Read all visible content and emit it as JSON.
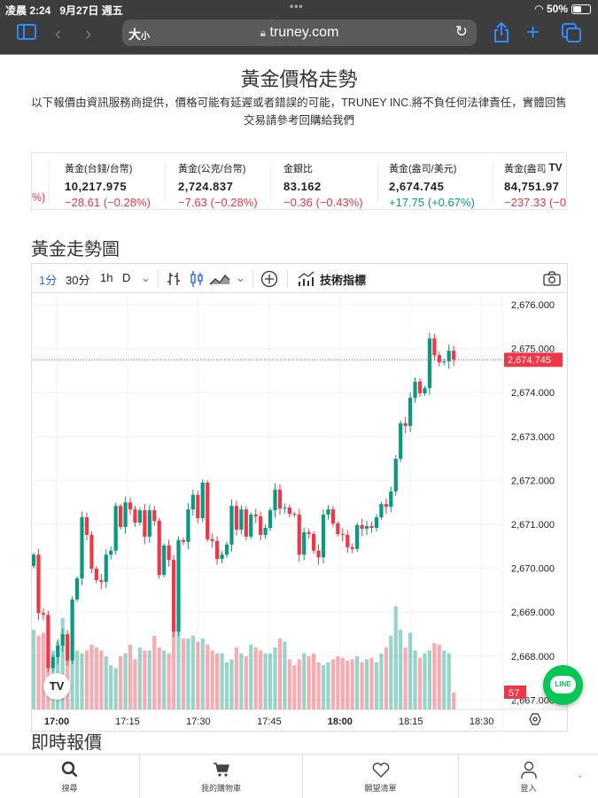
{
  "status": {
    "time": "凌晨 2:24",
    "date": "9月27日 週五",
    "battery": "50%",
    "battery_level": 0.5
  },
  "browser": {
    "text_size": "大",
    "text_size_small": "小",
    "url": "truney.com"
  },
  "page": {
    "title": "黃金價格走勢",
    "disclaimer": "以下報價由資訊服務商提供，價格可能有延遲或者錯誤的可能，TRUNEY INC.將不負任何法律責任，實體回售交易請參考回購給我們",
    "section_title": "黃金走勢圖",
    "live_title": "即時報價"
  },
  "ticker": {
    "partial_prev_change": "%)",
    "items": [
      {
        "name": "黃金(台錢/台幣)",
        "value": "10,217.975",
        "change": "−28.61 (−0.28%)",
        "dir": "down"
      },
      {
        "name": "黃金(公克/台幣)",
        "value": "2,724.837",
        "change": "−7.63 (−0.28%)",
        "dir": "down"
      },
      {
        "name": "金銀比",
        "value": "83.162",
        "change": "−0.36 (−0.43%)",
        "dir": "down"
      },
      {
        "name": "黃金(盎司/美元)",
        "value": "2,674.745",
        "change": "+17.75 (+0.67%)",
        "dir": "up"
      },
      {
        "name": "黃金(盎司",
        "value": "84,751.97",
        "change": "−237.33 (−0",
        "dir": "down"
      }
    ],
    "logo": "TV"
  },
  "toolbar": {
    "intervals": [
      "1分",
      "30分",
      "1h",
      "D"
    ],
    "selected_interval": "1分",
    "indicators": "技術指標"
  },
  "chart_data": {
    "type": "candlestick",
    "interval": "1 minute",
    "first_open": 2670.05,
    "close": [
      2670.31,
      2668.98,
      2668.94,
      2667.73,
      2667.98,
      2668.24,
      2668.5,
      2667.9,
      2669.29,
      2669.77,
      2671.16,
      2670.76,
      2669.99,
      2669.73,
      2669.69,
      2670.31,
      2670.4,
      2671.42,
      2670.94,
      2671.5,
      2671.34,
      2671.04,
      2671.32,
      2670.72,
      2671.32,
      2671.08,
      2669.85,
      2670.52,
      2670.19,
      2668.56,
      2670.64,
      2670.6,
      2671.34,
      2671.67,
      2671.14,
      2671.95,
      2670.66,
      2670.62,
      2670.21,
      2670.31,
      2670.54,
      2671.42,
      2670.88,
      2671.34,
      2670.72,
      2671.22,
      2671.18,
      2670.76,
      2670.92,
      2671.32,
      2671.79,
      2671.36,
      2671.38,
      2671.24,
      2671.22,
      2670.31,
      2670.82,
      2670.78,
      2670.4,
      2670.25,
      2671.22,
      2671.34,
      2671.02,
      2670.78,
      2670.76,
      2670.48,
      2670.44,
      2670.98,
      2670.9,
      2670.96,
      2670.92,
      2671.16,
      2671.46,
      2671.4,
      2671.75,
      2672.49,
      2673.3,
      2673.24,
      2673.88,
      2674.25,
      2673.98,
      2674.1,
      2675.23,
      2674.85,
      2674.69,
      2674.71,
      2674.95,
      2674.745
    ],
    "volume": [
      270,
      250,
      260,
      240,
      200,
      230,
      310,
      250,
      230,
      200,
      190,
      200,
      220,
      210,
      200,
      180,
      150,
      140,
      180,
      190,
      220,
      170,
      210,
      200,
      200,
      250,
      210,
      200,
      190,
      280,
      350,
      240,
      240,
      250,
      230,
      240,
      220,
      200,
      190,
      190,
      160,
      170,
      210,
      190,
      180,
      220,
      210,
      200,
      190,
      190,
      210,
      240,
      230,
      170,
      150,
      170,
      190,
      180,
      190,
      160,
      150,
      160,
      170,
      180,
      175,
      165,
      170,
      180,
      160,
      170,
      175,
      160,
      190,
      210,
      250,
      350,
      270,
      210,
      260,
      200,
      175,
      190,
      200,
      225,
      220,
      200,
      190,
      57
    ],
    "y_ticks": [
      "2,676.000",
      "2,675.000",
      "2,674.000",
      "2,673.000",
      "2,672.000",
      "2,671.000",
      "2,670.000",
      "2,669.000",
      "2,668.000",
      "2,667.000"
    ],
    "ylim": [
      2667,
      2676
    ],
    "x_ticks": [
      {
        "label": "17:00",
        "minute": 0,
        "bold": true
      },
      {
        "label": "17:15",
        "minute": 15
      },
      {
        "label": "17:30",
        "minute": 30
      },
      {
        "label": "17:45",
        "minute": 45
      },
      {
        "label": "18:00",
        "minute": 60,
        "bold": true
      },
      {
        "label": "18:15",
        "minute": 75
      },
      {
        "label": "18:30",
        "minute": 90
      }
    ],
    "last_price": "2,674.745",
    "last_volume": "57",
    "up_color": "#089981",
    "down_color": "#f23645"
  },
  "nav": [
    {
      "label": "搜尋",
      "icon": "search-icon"
    },
    {
      "label": "我的購物車",
      "icon": "cart-icon"
    },
    {
      "label": "願望清單",
      "icon": "heart-icon"
    },
    {
      "label": "登入",
      "icon": "user-icon"
    }
  ],
  "line_button": "LINE"
}
